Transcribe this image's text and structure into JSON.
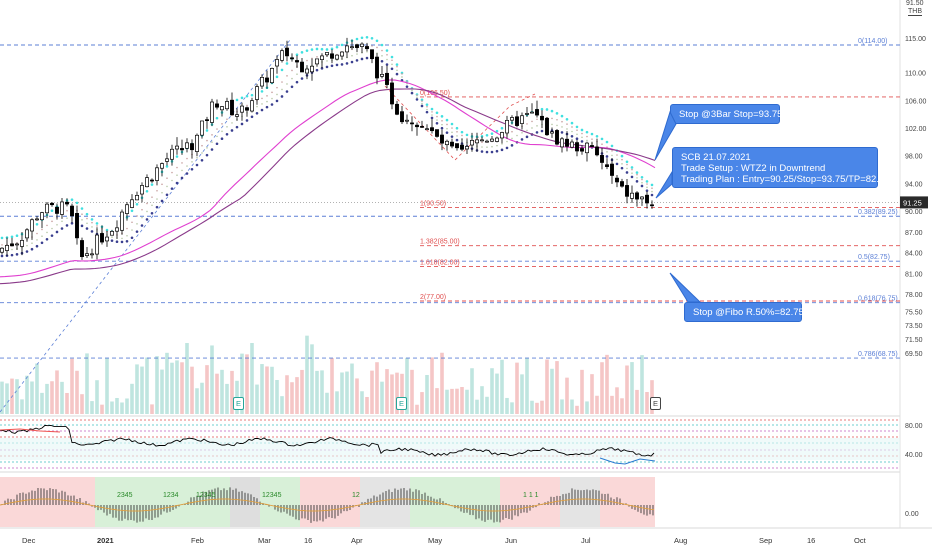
{
  "currency": "THB",
  "header_value": "91.50",
  "current_price": "91.25",
  "price_axis": [
    "115.00",
    "110.00",
    "106.00",
    "102.00",
    "98.00",
    "94.00",
    "90.00",
    "87.00",
    "84.00",
    "81.00",
    "78.00",
    "75.50",
    "73.50",
    "71.50",
    "69.50"
  ],
  "rsi_axis": [
    "80.00",
    "40.00"
  ],
  "osc_axis": [
    "0.00"
  ],
  "time_axis": [
    "Dec",
    "2021",
    "Feb",
    "Mar",
    "16",
    "Apr",
    "May",
    "Jun",
    "Jul",
    "Aug",
    "Sep",
    "16",
    "Oct"
  ],
  "fib_right": [
    "0(114.00)",
    "0.382(89.25)",
    "0.5(82.75)",
    "0.618(76.75)",
    "0.786(68.75)"
  ],
  "fib_mid": [
    "0(106.50)",
    "1(90.50)",
    "1.382(85.00)",
    "1.618(82.00)",
    "2(77.00)"
  ],
  "callouts": {
    "stop_3bar": "Stop @3Bar Stop=93.75",
    "setup": [
      "SCB 21.07.2021",
      "Trade Setup : WTZ2 in Downtrend",
      "Trading Plan : Entry=90.25/Stop=93.75/TP=82.75"
    ],
    "stop_fibo": "Stop @Fibo R.50%=82.75"
  },
  "event_markers": [
    "E",
    "E",
    "E"
  ],
  "osc_labels": [
    "2345",
    "1234",
    "12345",
    "12345",
    "12",
    "1 1 1"
  ],
  "colors": {
    "up": "#26a69a",
    "down": "#ef5350",
    "candle": "#000000",
    "blue_dash": "#5b7fd6",
    "red_dash": "#e05050",
    "cyan": "#40e0e0",
    "navy": "#3a3f8f",
    "magenta": "#e040d0",
    "purple": "#8a3a8a"
  }
}
